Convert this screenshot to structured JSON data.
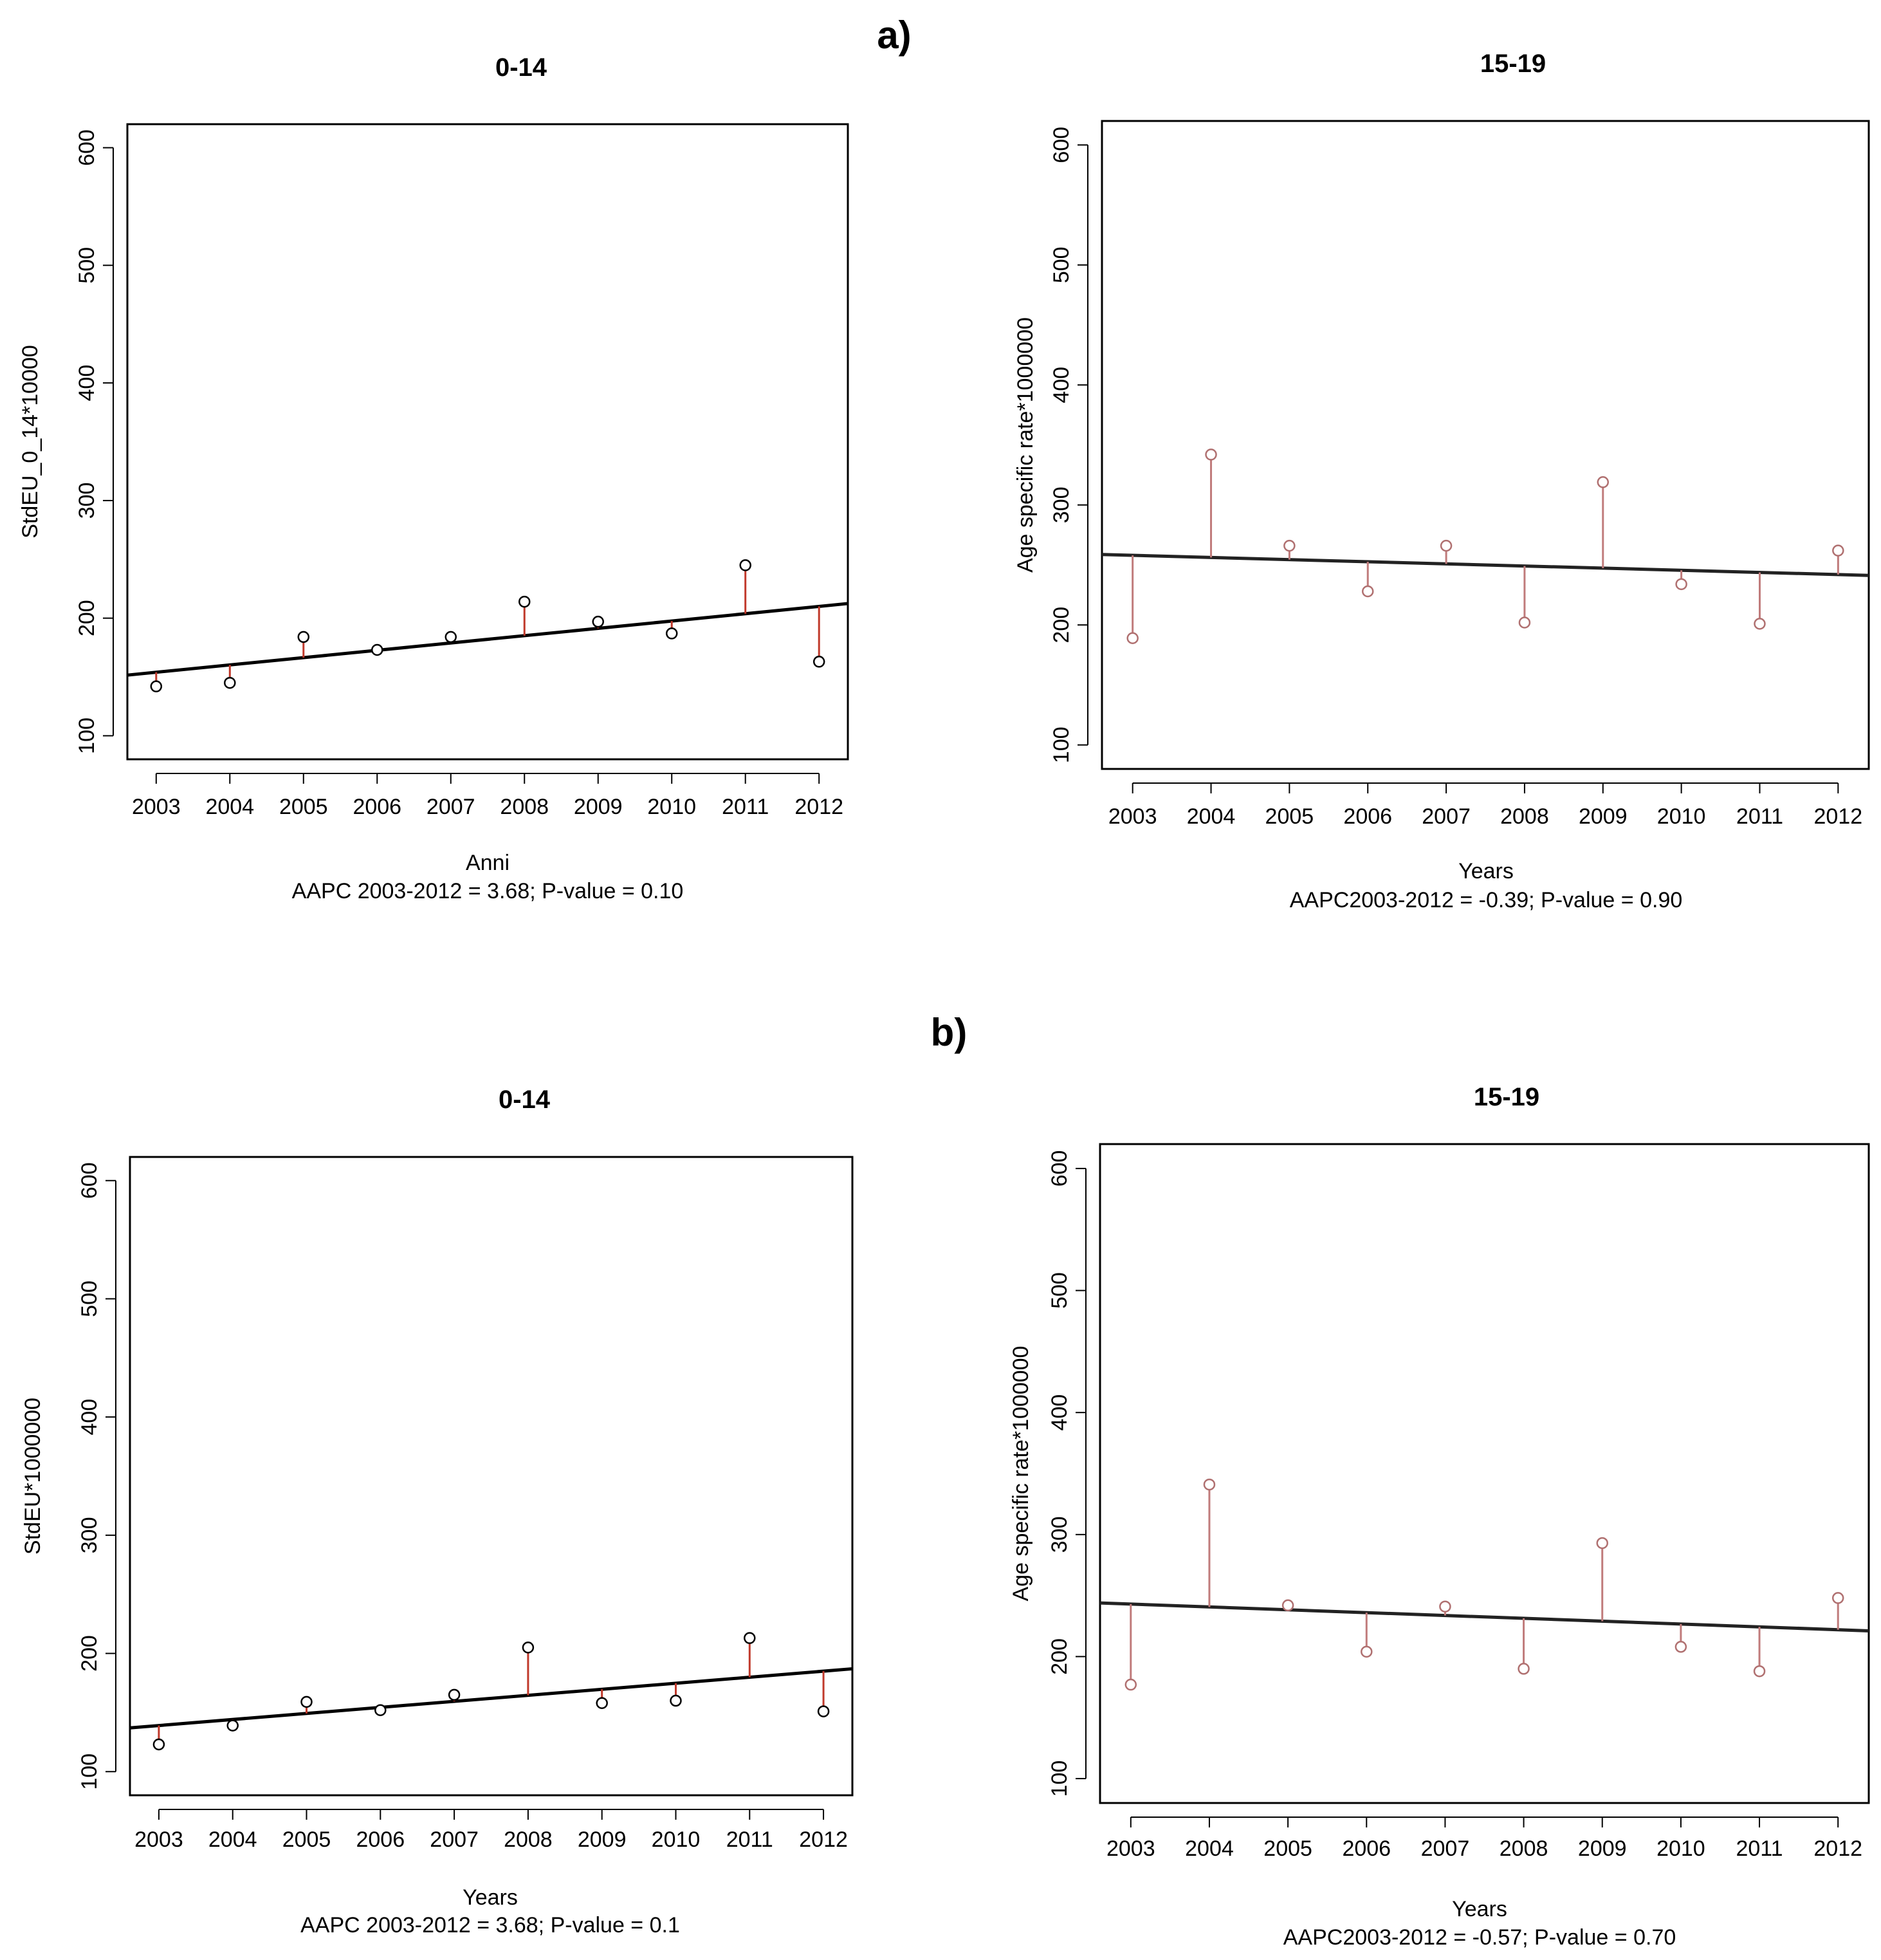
{
  "panels": [
    {
      "label": "a)"
    },
    {
      "label": "b)"
    }
  ],
  "chart_data": [
    {
      "type": "scatter",
      "panel": "a)",
      "title": "0-14",
      "xlabel": "Anni",
      "ylabel": "StdEU_0_14*10000",
      "note": "AAPC 2003-2012 = 3.68;  P-value = 0.10",
      "x": [
        2003,
        2004,
        2005,
        2006,
        2007,
        2008,
        2009,
        2010,
        2011,
        2012
      ],
      "x_tick_labels": [
        "2003",
        "2004",
        "2005",
        "2006",
        "2007",
        "2008",
        "2009",
        "2010",
        "2011",
        "2012"
      ],
      "values": [
        142,
        145,
        184,
        173,
        184,
        214,
        197,
        187,
        245,
        163
      ],
      "trend": [
        154,
        210
      ],
      "y_ticks": [
        100,
        200,
        300,
        400,
        500,
        600
      ],
      "ylim": [
        80,
        620
      ],
      "marker_color": "#000000",
      "residual_color": "#c0392b",
      "trend_color": "#000000"
    },
    {
      "type": "scatter",
      "panel": "a)",
      "title": "15-19",
      "xlabel": "Years",
      "ylabel": "Age specific rate*1000000",
      "note": "AAPC2003-2012 = -0.39;  P-value = 0.90",
      "x": [
        2003,
        2004,
        2005,
        2006,
        2007,
        2008,
        2009,
        2010,
        2011,
        2012
      ],
      "x_tick_labels": [
        "2003",
        "2004",
        "2005",
        "2006",
        "2007",
        "2008",
        "2009",
        "2010",
        "2011",
        "2012"
      ],
      "values": [
        189,
        342,
        266,
        228,
        266,
        202,
        319,
        234,
        201,
        262
      ],
      "trend": [
        258,
        242
      ],
      "y_ticks": [
        100,
        200,
        300,
        400,
        500,
        600
      ],
      "ylim": [
        80,
        620
      ],
      "marker_color": "#b07070",
      "residual_color": "#c07b7b",
      "trend_color": "#222222"
    },
    {
      "type": "scatter",
      "panel": "b)",
      "title": "0-14",
      "xlabel": "Years",
      "ylabel": "StdEU*1000000",
      "note": "AAPC 2003-2012 = 3.68;  P-value = 0.1",
      "x": [
        2003,
        2004,
        2005,
        2006,
        2007,
        2008,
        2009,
        2010,
        2011,
        2012
      ],
      "x_tick_labels": [
        "2003",
        "2004",
        "2005",
        "2006",
        "2007",
        "2008",
        "2009",
        "2010",
        "2011",
        "2012"
      ],
      "values": [
        123,
        139,
        159,
        152,
        165,
        205,
        158,
        160,
        213,
        151
      ],
      "trend": [
        139,
        185
      ],
      "y_ticks": [
        100,
        200,
        300,
        400,
        500,
        600
      ],
      "ylim": [
        80,
        620
      ],
      "marker_color": "#000000",
      "residual_color": "#c0392b",
      "trend_color": "#000000"
    },
    {
      "type": "scatter",
      "panel": "b)",
      "title": "15-19",
      "xlabel": "Years",
      "ylabel": "Age specific rate*1000000",
      "note": "AAPC2003-2012 = -0.57;  P-value = 0.70",
      "x": [
        2003,
        2004,
        2005,
        2006,
        2007,
        2008,
        2009,
        2010,
        2011,
        2012
      ],
      "x_tick_labels": [
        "2003",
        "2004",
        "2005",
        "2006",
        "2007",
        "2008",
        "2009",
        "2010",
        "2011",
        "2012"
      ],
      "values": [
        177,
        341,
        242,
        204,
        241,
        190,
        293,
        208,
        188,
        248
      ],
      "trend": [
        243,
        222
      ],
      "y_ticks": [
        100,
        200,
        300,
        400,
        500,
        600
      ],
      "ylim": [
        80,
        620
      ],
      "marker_color": "#b07070",
      "residual_color": "#c07b7b",
      "trend_color": "#222222"
    }
  ]
}
